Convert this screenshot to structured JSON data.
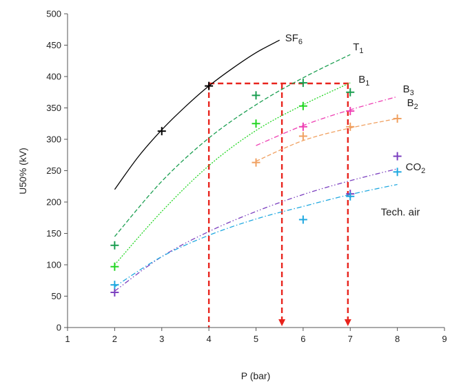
{
  "chart_data": {
    "type": "scatter",
    "xlabel": "P (bar)",
    "ylabel": "U50% (kV)",
    "xlim": [
      1,
      9
    ],
    "ylim": [
      0,
      500
    ],
    "xticks": [
      "1",
      "2",
      "3",
      "4",
      "5",
      "6",
      "7",
      "8",
      "9"
    ],
    "yticks": [
      "0",
      "50",
      "100",
      "150",
      "200",
      "250",
      "300",
      "350",
      "400",
      "450",
      "500"
    ],
    "grid": false,
    "legend": "none",
    "series": [
      {
        "name_main": "SF",
        "name_sub": "6",
        "color": "#000000",
        "line_style": "solid",
        "points": [
          [
            3,
            313
          ],
          [
            4,
            385
          ]
        ],
        "fit": [
          [
            2,
            220
          ],
          [
            2.5,
            272
          ],
          [
            3,
            315
          ],
          [
            3.5,
            352
          ],
          [
            4,
            385
          ],
          [
            4.5,
            413
          ],
          [
            5,
            438
          ],
          [
            5.5,
            458
          ]
        ]
      },
      {
        "name_main": "T",
        "name_sub": "1",
        "color": "#1a9e50",
        "line_style": "dashed",
        "points": [
          [
            2,
            131
          ],
          [
            5,
            370
          ],
          [
            6,
            390
          ],
          [
            7,
            375
          ]
        ],
        "fit": [
          [
            2,
            145
          ],
          [
            3,
            233
          ],
          [
            4,
            302
          ],
          [
            5,
            355
          ],
          [
            6,
            398
          ],
          [
            7,
            435
          ]
        ]
      },
      {
        "name_main": "B",
        "name_sub": "1",
        "color": "#22d622",
        "line_style": "dotted",
        "points": [
          [
            2,
            97
          ],
          [
            5,
            325
          ],
          [
            6,
            353
          ]
        ],
        "fit": [
          [
            2,
            100
          ],
          [
            3,
            185
          ],
          [
            4,
            258
          ],
          [
            5,
            314
          ],
          [
            6,
            355
          ],
          [
            7,
            390
          ]
        ]
      },
      {
        "name_main": "B",
        "name_sub": "3",
        "color": "#ee3fb3",
        "line_style": "dashdot",
        "points": [
          [
            6,
            320
          ],
          [
            7,
            345
          ]
        ],
        "fit": [
          [
            5,
            290
          ],
          [
            6,
            322
          ],
          [
            7,
            347
          ],
          [
            8,
            368
          ]
        ]
      },
      {
        "name_main": "B",
        "name_sub": "2",
        "color": "#f0a060",
        "line_style": "dashed",
        "points": [
          [
            5,
            263
          ],
          [
            6,
            305
          ],
          [
            7,
            320
          ],
          [
            8,
            333
          ]
        ],
        "fit": [
          [
            5,
            265
          ],
          [
            6,
            298
          ],
          [
            7,
            318
          ],
          [
            8,
            333
          ]
        ]
      },
      {
        "name_main": "CO",
        "name_sub": "2",
        "color": "#7b3fbf",
        "line_style": "dashdotdot",
        "points": [
          [
            2,
            56
          ],
          [
            7,
            213
          ],
          [
            8,
            273
          ]
        ],
        "fit": [
          [
            2,
            58
          ],
          [
            3,
            113
          ],
          [
            4,
            153
          ],
          [
            5,
            185
          ],
          [
            6,
            212
          ],
          [
            7,
            234
          ],
          [
            8,
            253
          ]
        ]
      },
      {
        "name_main": "Tech. air",
        "name_sub": "",
        "color": "#1fa8e0",
        "line_style": "dashdot",
        "points": [
          [
            2,
            68
          ],
          [
            6,
            172
          ],
          [
            7,
            209
          ],
          [
            8,
            248
          ]
        ],
        "fit": [
          [
            2,
            65
          ],
          [
            3,
            113
          ],
          [
            4,
            147
          ],
          [
            5,
            173
          ],
          [
            6,
            193
          ],
          [
            7,
            212
          ],
          [
            8,
            228
          ]
        ]
      }
    ],
    "annotations": {
      "color": "#e8231c",
      "horizontal": {
        "y": 389,
        "x_from": 4,
        "x_to": 7
      },
      "verticals": [
        {
          "x": 4,
          "y_from": 389,
          "y_to": 0,
          "arrow": false
        },
        {
          "x": 5.55,
          "y_from": 389,
          "y_to": 0,
          "arrow": true
        },
        {
          "x": 6.95,
          "y_from": 389,
          "y_to": 0,
          "arrow": true
        }
      ]
    }
  }
}
